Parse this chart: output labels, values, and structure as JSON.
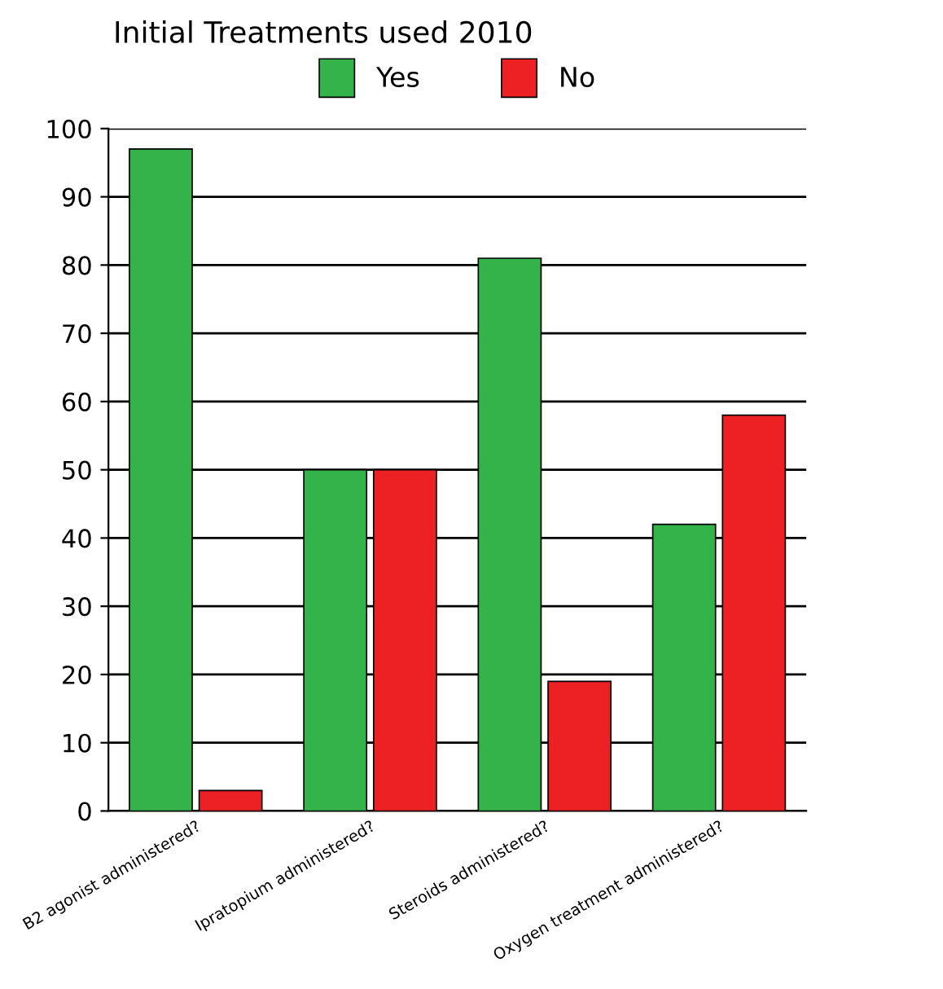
{
  "chart_data": {
    "type": "bar",
    "title": "Initial Treatments used 2010",
    "categories": [
      "B2 agonist administered?",
      "Ipratopium administered?",
      "Steroids administered?",
      "Oxygen treatment administered?"
    ],
    "series": [
      {
        "name": "Yes",
        "color": "#34b34a",
        "values": [
          97,
          50,
          81,
          42
        ]
      },
      {
        "name": "No",
        "color": "#ed2024",
        "values": [
          3,
          50,
          19,
          58
        ]
      }
    ],
    "ylim": [
      0,
      100
    ],
    "yticks": [
      0,
      10,
      20,
      30,
      40,
      50,
      60,
      70,
      80,
      90,
      100
    ],
    "grid": "y",
    "legend": "top"
  }
}
